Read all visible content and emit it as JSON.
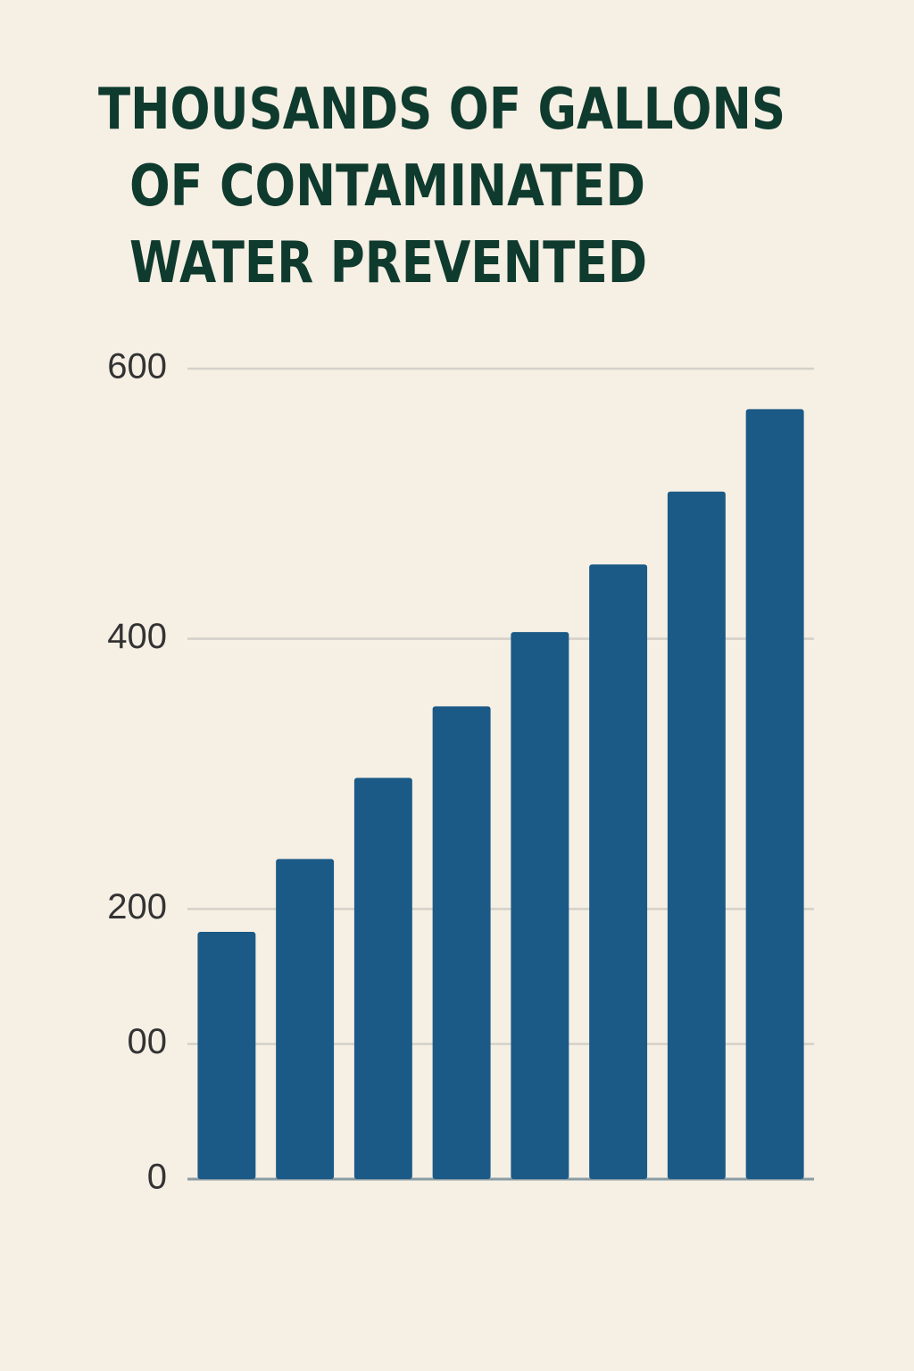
{
  "chart_data": {
    "type": "bar",
    "title": [
      "THOUSANDS OF GALLONS",
      "OF CONTAMINATED",
      "WATER PREVENTED"
    ],
    "values": [
      183,
      237,
      297,
      350,
      405,
      455,
      509,
      570
    ],
    "color": "#1b5a87",
    "ylim": [
      0,
      600
    ],
    "yticks": [
      0,
      {
        "value": 100,
        "label": "00"
      },
      200,
      400,
      600
    ],
    "grid": true
  }
}
